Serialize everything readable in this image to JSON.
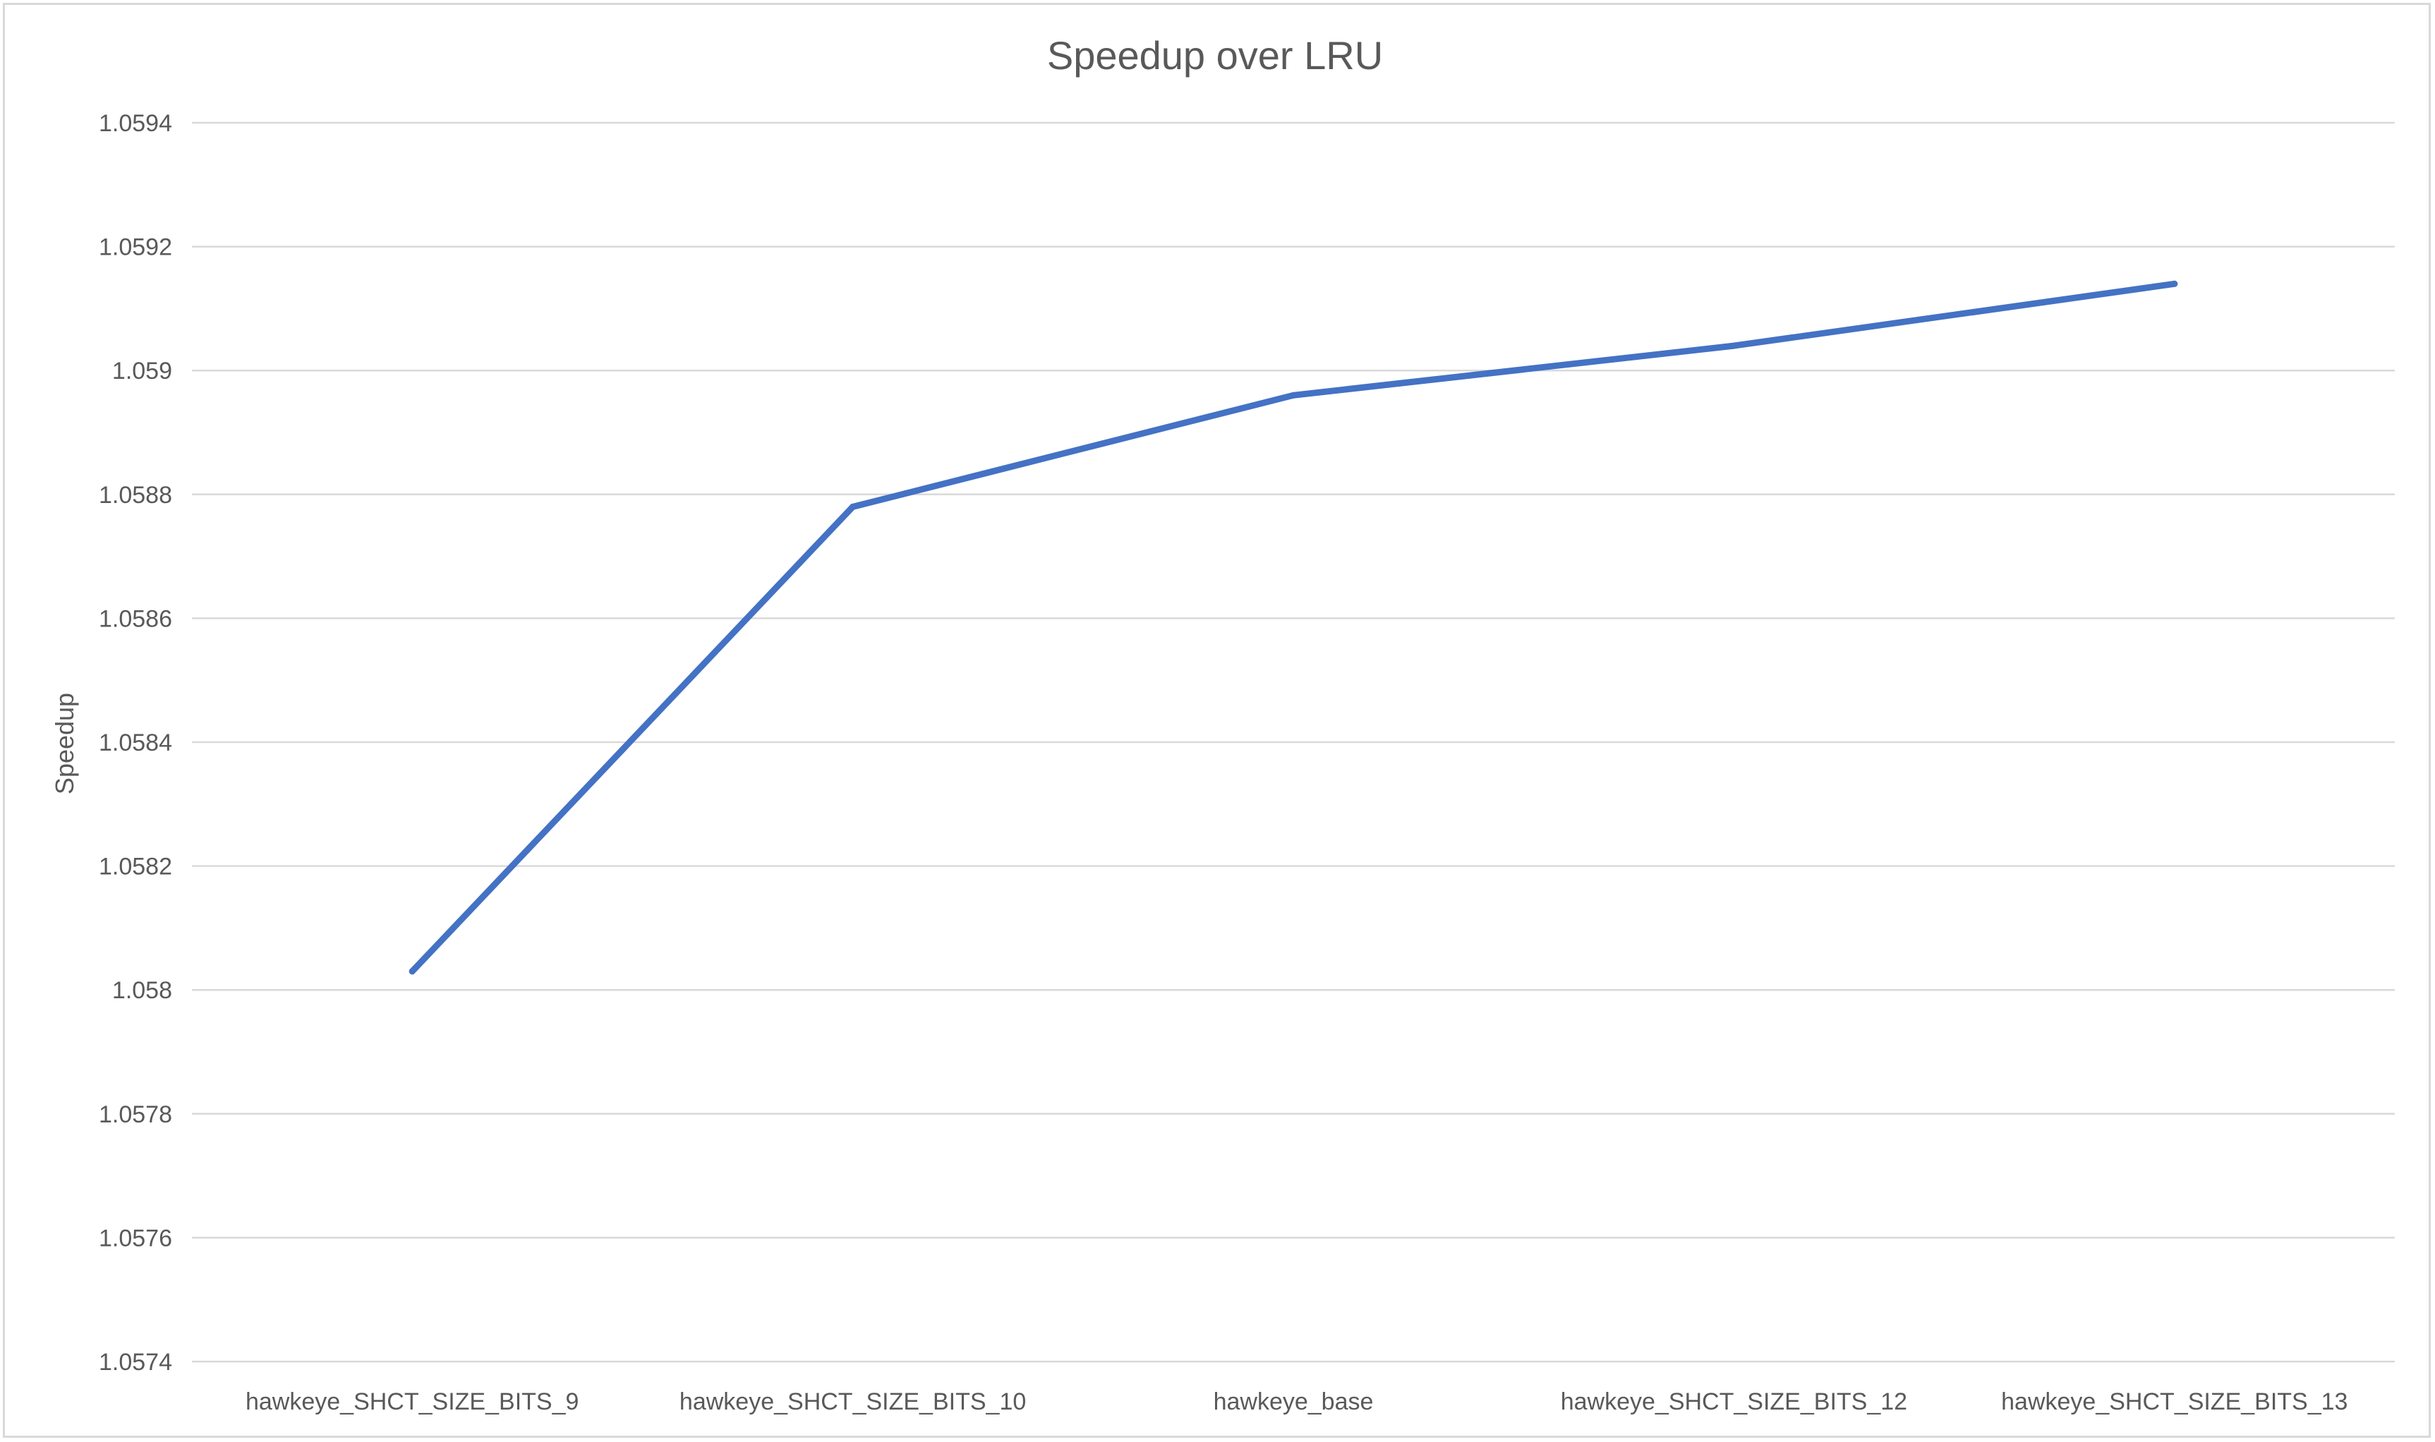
{
  "chart_data": {
    "type": "line",
    "title": "Speedup over LRU",
    "xlabel": "",
    "ylabel": "Speedup",
    "categories": [
      "hawkeye_SHCT_SIZE_BITS_9",
      "hawkeye_SHCT_SIZE_BITS_10",
      "hawkeye_base",
      "hawkeye_SHCT_SIZE_BITS_12",
      "hawkeye_SHCT_SIZE_BITS_13"
    ],
    "series": [
      {
        "values": [
          1.05803,
          1.05878,
          1.05896,
          1.05904,
          1.05914
        ],
        "color": "#4472c4"
      }
    ],
    "ylim": [
      1.0574,
      1.0594
    ],
    "yticks": [
      "1.0574",
      "1.0576",
      "1.0578",
      "1.058",
      "1.0582",
      "1.0584",
      "1.0586",
      "1.0588",
      "1.059",
      "1.0592",
      "1.0594"
    ],
    "grid": true,
    "legend": "none"
  }
}
